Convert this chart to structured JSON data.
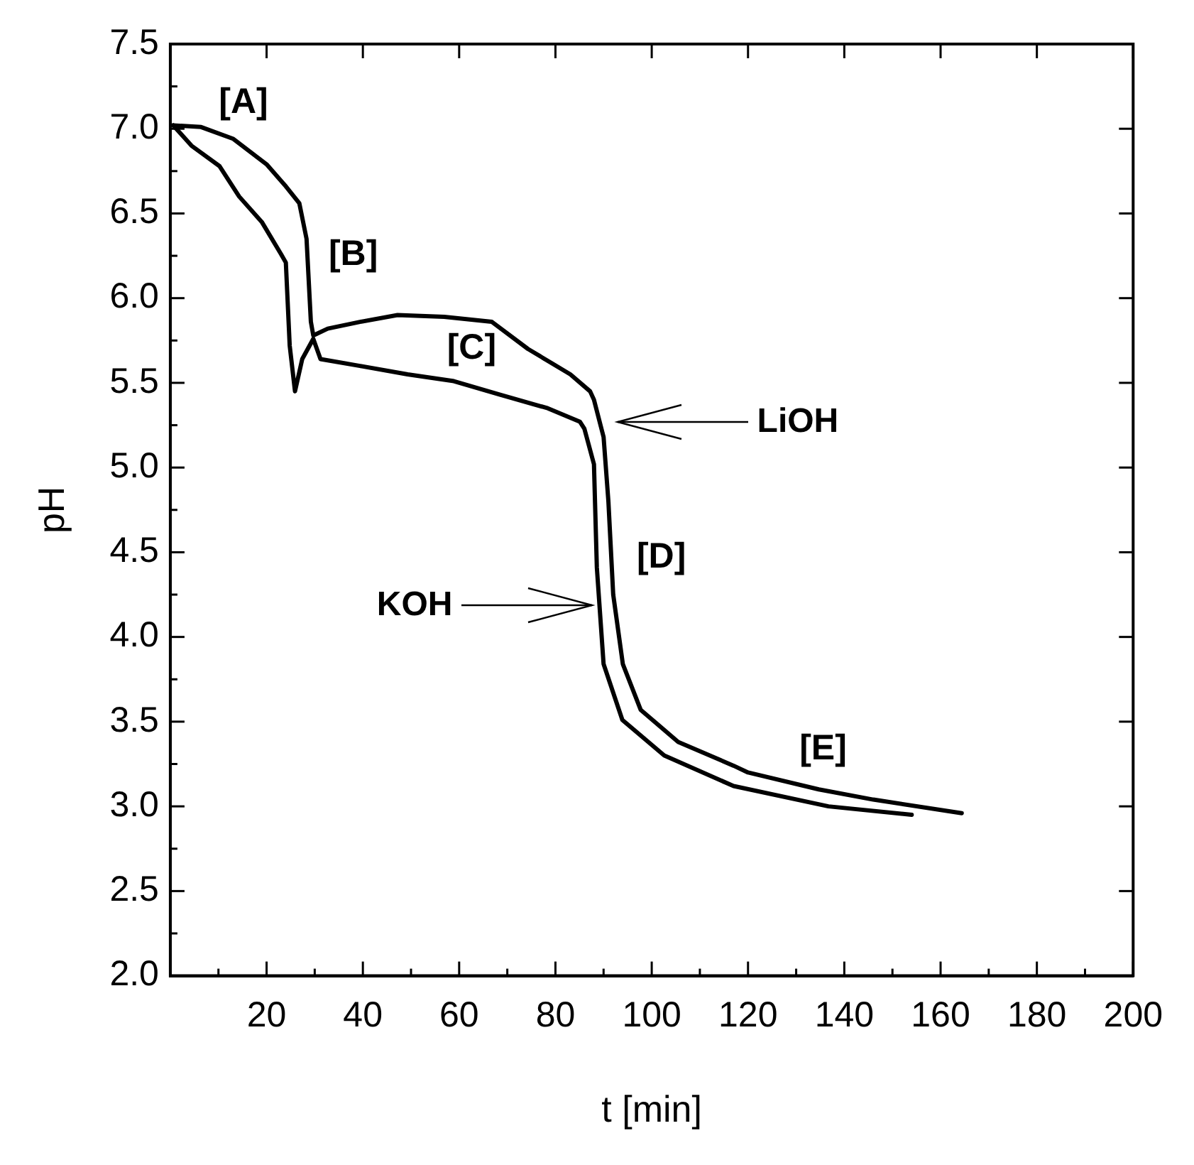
{
  "chart_data": {
    "type": "line",
    "xlabel": "t [min]",
    "ylabel": "pH",
    "xlim": [
      0,
      200
    ],
    "ylim": [
      2,
      7.5
    ],
    "xticks": [
      20,
      40,
      60,
      80,
      100,
      120,
      140,
      160,
      180,
      200
    ],
    "yticks": [
      {
        "value": 2,
        "label": "2.0"
      },
      2.5,
      {
        "value": 3,
        "label": "3.0"
      },
      3.5,
      {
        "value": 4,
        "label": "4.0"
      },
      4.5,
      {
        "value": 5,
        "label": "5.0"
      },
      5.5,
      {
        "value": 6,
        "label": "6.0"
      },
      6.5,
      {
        "value": 7,
        "label": "7.0"
      },
      7.5
    ],
    "grid": false,
    "legend": false,
    "marker": "none",
    "line_style": "solid",
    "series": [
      {
        "color": "#000000",
        "x": [
          0.6,
          6.4,
          13.1,
          20,
          24,
          26.8,
          28.3,
          29.2,
          29.7,
          32.7,
          39.4,
          47.2,
          56.9,
          66.8,
          74.3,
          83.1,
          87.2,
          88,
          90,
          91,
          92,
          94,
          97.7,
          105.5,
          117,
          120,
          134.7,
          146,
          164.4
        ],
        "values": [
          7.02,
          7.01,
          6.94,
          6.79,
          6.66,
          6.56,
          6.35,
          5.86,
          5.78,
          5.82,
          5.86,
          5.9,
          5.89,
          5.86,
          5.7,
          5.55,
          5.45,
          5.4,
          5.18,
          4.8,
          4.25,
          3.84,
          3.57,
          3.38,
          3.24,
          3.2,
          3.1,
          3.04,
          2.96
        ]
      },
      {
        "color": "#000000",
        "x": [
          0.6,
          4.4,
          10.2,
          14.3,
          19,
          23,
          24,
          24.8,
          25.9,
          27.4,
          29.7,
          31.2,
          39.4,
          49.3,
          58.9,
          68.5,
          78.4,
          85.1,
          86,
          88,
          88.6,
          90,
          93.9,
          102.6,
          117,
          136.7,
          154
        ],
        "values": [
          7.02,
          6.9,
          6.78,
          6.6,
          6.45,
          6.26,
          6.21,
          5.72,
          5.45,
          5.64,
          5.76,
          5.64,
          5.6,
          5.55,
          5.51,
          5.43,
          5.35,
          5.27,
          5.23,
          5.02,
          4.41,
          3.84,
          3.51,
          3.3,
          3.12,
          3,
          2.95
        ]
      }
    ],
    "annotations": [
      "[A]",
      "[B]",
      "[C]",
      "[D]",
      "[E]",
      "LiOH",
      "KOH"
    ]
  }
}
